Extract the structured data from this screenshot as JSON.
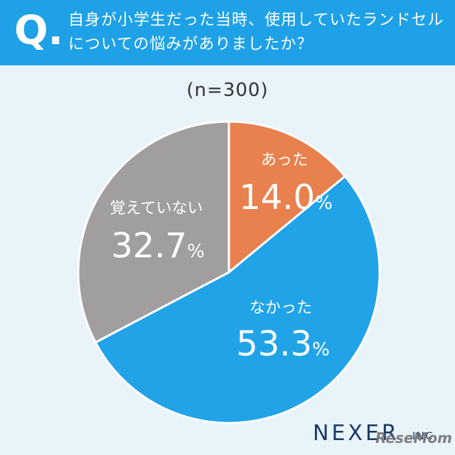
{
  "header": {
    "q_mark": "Q.",
    "line1": "自身が小学生だった当時、使用していたランドセル",
    "line2": "についての悩みがありましたか？"
  },
  "colors": {
    "header_bg": "#1ea1e6",
    "background": "#e9f3fa",
    "atta": "#e8814d",
    "nakatta": "#21a3e8",
    "oboete": "#a09e9f"
  },
  "chart_data": {
    "type": "pie",
    "n_label": "(n=300)",
    "slices": [
      {
        "label": "あった",
        "value": 14.0,
        "display": "14.0",
        "color": "#e8814d"
      },
      {
        "label": "なかった",
        "value": 53.3,
        "display": "53.3",
        "color": "#21a3e8"
      },
      {
        "label": "覚えていない",
        "value": 32.7,
        "display": "32.7",
        "color": "#a09e9f"
      }
    ],
    "unit": "%"
  },
  "footer": {
    "logo": "NEXER",
    "logo_suffix": "INC",
    "watermark": "ReseMom"
  }
}
